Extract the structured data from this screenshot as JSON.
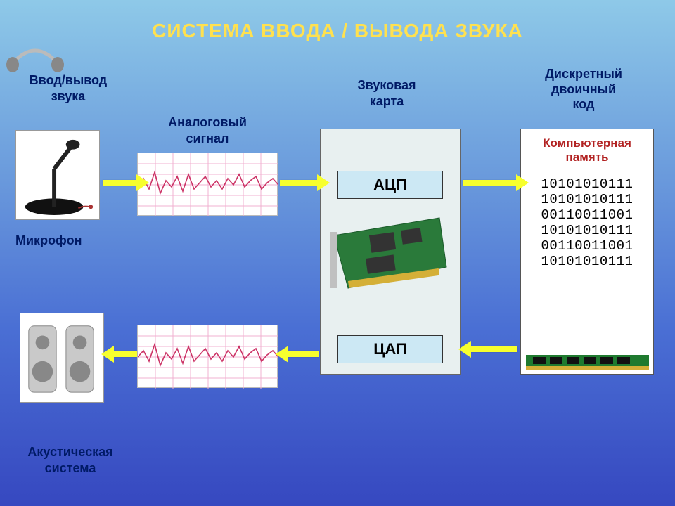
{
  "title": "СИСТЕМА  ВВОДА / ВЫВОДА  ЗВУКА",
  "labels": {
    "input_output": "Ввод/вывод\nзвука",
    "analog_signal": "Аналоговый\nсигнал",
    "sound_card": "Звуковая\nкарта",
    "binary_code": "Дискретный\nдвоичный\nкод",
    "microphone": "Микрофон",
    "acoustic_system": "Акустическая\nсистема"
  },
  "boxes": {
    "adc": "АЦП",
    "dac": "ЦАП",
    "memory_title": "Компьютерная\nпамять"
  },
  "binary_lines": [
    "10101010111",
    "10101010111",
    "00110011001",
    "10101010111",
    "00110011001",
    "10101010111"
  ],
  "style": {
    "title_color": "#ffe14f",
    "label_color": "#001a66",
    "arrow_color": "#f7ff2e",
    "adc_bg": "#cce8f4",
    "soundcard_bg": "#e8f0f0",
    "mem_title_color": "#b22222",
    "binary_font": "Courier New",
    "title_fontsize": 28,
    "label_fontsize": 18,
    "box_fontsize": 22,
    "bg_gradient": [
      "#8ec9e8",
      "#6a9adc",
      "#4a6fd4",
      "#3648c0"
    ]
  },
  "waveform": {
    "grid_color": "#f0b0d0",
    "line_color": "#cc3366",
    "points": [
      0.5,
      0.35,
      0.6,
      0.2,
      0.7,
      0.4,
      0.55,
      0.3,
      0.65,
      0.25,
      0.6,
      0.45,
      0.3,
      0.55,
      0.4,
      0.6,
      0.35,
      0.5,
      0.25,
      0.55,
      0.4,
      0.3,
      0.6,
      0.45,
      0.35,
      0.5
    ]
  },
  "devices": {
    "microphone": {
      "base_color": "#111",
      "stand_color": "#222"
    },
    "speakers": {
      "body_color": "#c9c9c9",
      "cone_color": "#888"
    },
    "pcb": {
      "board_color": "#2a7a3a",
      "chip_color": "#333",
      "connector_color": "#c0c0c0"
    },
    "ram": {
      "pcb_color": "#1f7a2f",
      "chip_color": "#111",
      "gold": "#d4af37"
    },
    "headphones": {
      "band_color": "#bbb",
      "cup_color": "#888"
    }
  },
  "arrows": [
    {
      "from": "microphone",
      "to": "waveform-top",
      "dir": "right"
    },
    {
      "from": "waveform-top",
      "to": "adc",
      "dir": "right"
    },
    {
      "from": "adc",
      "to": "memory",
      "dir": "right"
    },
    {
      "from": "memory",
      "to": "dac",
      "dir": "left"
    },
    {
      "from": "dac",
      "to": "waveform-bottom",
      "dir": "left"
    },
    {
      "from": "waveform-bottom",
      "to": "speakers",
      "dir": "left"
    }
  ]
}
